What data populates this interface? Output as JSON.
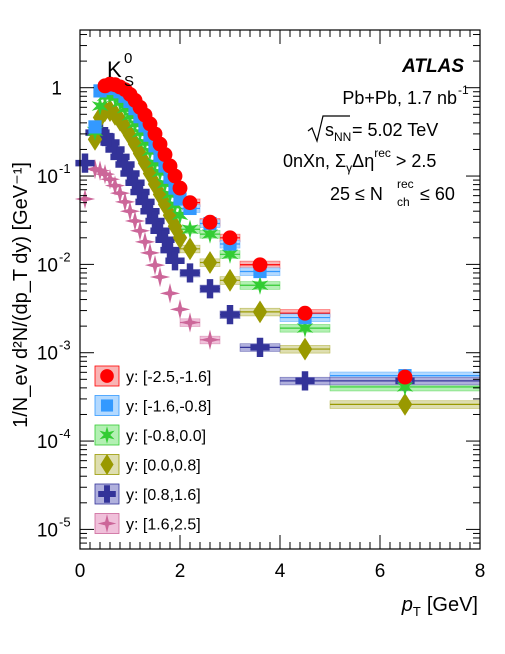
{
  "chart_data": {
    "type": "scatter",
    "xlabel": "p",
    "xlabel_sub": "T",
    "xlabel_unit": "[GeV]",
    "ylabel": "1/N_ev d²N/(dp_T dy) [GeV⁻¹]",
    "x_scale": "linear",
    "y_scale": "log",
    "xlim": [
      0,
      8
    ],
    "ylim": [
      6e-06,
      4.5
    ],
    "x_ticks": [
      0,
      2,
      4,
      6,
      8
    ],
    "x_tick_labels": [
      "0",
      "2",
      "4",
      "6",
      "8"
    ],
    "y_ticks": [
      1e-05,
      0.0001,
      0.001,
      0.01,
      0.1,
      1
    ],
    "y_tick_labels": [
      {
        "base": "10",
        "exp": "-5"
      },
      {
        "base": "10",
        "exp": "-4"
      },
      {
        "base": "10",
        "exp": "-3"
      },
      {
        "base": "10",
        "exp": "-2"
      },
      {
        "base": "10",
        "exp": "-1"
      },
      {
        "base": "1",
        "exp": ""
      }
    ],
    "grid": false,
    "legend_position": "bottom-left",
    "annotations": {
      "particle": "K",
      "particle_sup": "0",
      "particle_sub": "S",
      "experiment": "ATLAS",
      "system": "Pb+Pb, 1.7 nb",
      "system_sup": "-1",
      "energy_lhs": "s",
      "energy_lhs_sub": "NN",
      "energy_rhs": " = 5.02 TeV",
      "selection_a": "0nXn, Σ",
      "selection_a_sub": "γ",
      "selection_b": "Δη",
      "selection_b_sup": "rec",
      "selection_c": " > 2.5",
      "mult_a": "25 ≤ N",
      "mult_sup": "rec",
      "mult_sub": "ch",
      "mult_c": " ≤ 60"
    },
    "series": [
      {
        "name": "y: [-2.5,-1.6]",
        "marker": "circle",
        "color": "#ff0000",
        "band_fill": "#f9b4b4",
        "points": [
          {
            "x": 0.5,
            "y": 1.05
          },
          {
            "x": 0.6,
            "y": 1.1
          },
          {
            "x": 0.7,
            "y": 1.08
          },
          {
            "x": 0.8,
            "y": 1.02
          },
          {
            "x": 0.9,
            "y": 0.95
          },
          {
            "x": 1.0,
            "y": 0.84
          },
          {
            "x": 1.1,
            "y": 0.72
          },
          {
            "x": 1.2,
            "y": 0.6
          },
          {
            "x": 1.3,
            "y": 0.49
          },
          {
            "x": 1.4,
            "y": 0.39
          },
          {
            "x": 1.5,
            "y": 0.3
          },
          {
            "x": 1.6,
            "y": 0.23
          },
          {
            "x": 1.7,
            "y": 0.175
          },
          {
            "x": 1.8,
            "y": 0.13
          },
          {
            "x": 1.9,
            "y": 0.1
          },
          {
            "x": 2.0,
            "y": 0.073
          },
          {
            "x": 2.2,
            "y": 0.05
          },
          {
            "x": 2.6,
            "y": 0.03
          },
          {
            "x": 3.0,
            "y": 0.02
          },
          {
            "x": 3.6,
            "y": 0.0099
          },
          {
            "x": 4.5,
            "y": 0.0028
          },
          {
            "x": 6.5,
            "y": 0.00053
          }
        ]
      },
      {
        "name": "y: [-1.6,-0.8]",
        "marker": "square",
        "color": "#3399ff",
        "band_fill": "#b3d9ff",
        "points": [
          {
            "x": 0.3,
            "y": 0.36
          },
          {
            "x": 0.4,
            "y": 0.92
          },
          {
            "x": 0.5,
            "y": 0.98
          },
          {
            "x": 0.6,
            "y": 1.0
          },
          {
            "x": 0.7,
            "y": 0.98
          },
          {
            "x": 0.8,
            "y": 0.9
          },
          {
            "x": 0.9,
            "y": 0.8
          },
          {
            "x": 1.0,
            "y": 0.7
          },
          {
            "x": 1.1,
            "y": 0.58
          },
          {
            "x": 1.2,
            "y": 0.47
          },
          {
            "x": 1.3,
            "y": 0.37
          },
          {
            "x": 1.4,
            "y": 0.29
          },
          {
            "x": 1.5,
            "y": 0.22
          },
          {
            "x": 1.6,
            "y": 0.17
          },
          {
            "x": 1.7,
            "y": 0.13
          },
          {
            "x": 1.8,
            "y": 0.097
          },
          {
            "x": 1.9,
            "y": 0.073
          },
          {
            "x": 2.0,
            "y": 0.055
          },
          {
            "x": 2.2,
            "y": 0.043
          },
          {
            "x": 2.6,
            "y": 0.029
          },
          {
            "x": 3.0,
            "y": 0.017
          },
          {
            "x": 3.6,
            "y": 0.0083
          },
          {
            "x": 4.5,
            "y": 0.0025
          },
          {
            "x": 6.5,
            "y": 0.00055
          }
        ]
      },
      {
        "name": "y: [-0.8,0.0]",
        "marker": "star",
        "color": "#33cc33",
        "band_fill": "#b3f0b3",
        "points": [
          {
            "x": 0.3,
            "y": 0.32
          },
          {
            "x": 0.4,
            "y": 0.62
          },
          {
            "x": 0.5,
            "y": 0.8
          },
          {
            "x": 0.6,
            "y": 0.85
          },
          {
            "x": 0.7,
            "y": 0.78
          },
          {
            "x": 0.8,
            "y": 0.68
          },
          {
            "x": 0.9,
            "y": 0.58
          },
          {
            "x": 1.0,
            "y": 0.48
          },
          {
            "x": 1.1,
            "y": 0.39
          },
          {
            "x": 1.2,
            "y": 0.31
          },
          {
            "x": 1.3,
            "y": 0.24
          },
          {
            "x": 1.4,
            "y": 0.19
          },
          {
            "x": 1.5,
            "y": 0.14
          },
          {
            "x": 1.6,
            "y": 0.11
          },
          {
            "x": 1.7,
            "y": 0.082
          },
          {
            "x": 1.8,
            "y": 0.062
          },
          {
            "x": 1.9,
            "y": 0.047
          },
          {
            "x": 2.0,
            "y": 0.036
          },
          {
            "x": 2.2,
            "y": 0.025
          },
          {
            "x": 2.6,
            "y": 0.022
          },
          {
            "x": 3.0,
            "y": 0.013
          },
          {
            "x": 3.6,
            "y": 0.0058
          },
          {
            "x": 4.5,
            "y": 0.0019
          },
          {
            "x": 6.5,
            "y": 0.00041
          }
        ]
      },
      {
        "name": "y: [0.0,0.8]",
        "marker": "diamond",
        "color": "#999900",
        "band_fill": "#dedeb0",
        "points": [
          {
            "x": 0.3,
            "y": 0.26
          },
          {
            "x": 0.4,
            "y": 0.46
          },
          {
            "x": 0.5,
            "y": 0.55
          },
          {
            "x": 0.6,
            "y": 0.55
          },
          {
            "x": 0.7,
            "y": 0.5
          },
          {
            "x": 0.8,
            "y": 0.43
          },
          {
            "x": 0.9,
            "y": 0.36
          },
          {
            "x": 1.0,
            "y": 0.29
          },
          {
            "x": 1.1,
            "y": 0.23
          },
          {
            "x": 1.2,
            "y": 0.18
          },
          {
            "x": 1.3,
            "y": 0.14
          },
          {
            "x": 1.4,
            "y": 0.107
          },
          {
            "x": 1.5,
            "y": 0.081
          },
          {
            "x": 1.6,
            "y": 0.062
          },
          {
            "x": 1.7,
            "y": 0.048
          },
          {
            "x": 1.8,
            "y": 0.036
          },
          {
            "x": 1.9,
            "y": 0.027
          },
          {
            "x": 2.0,
            "y": 0.02
          },
          {
            "x": 2.2,
            "y": 0.015
          },
          {
            "x": 2.6,
            "y": 0.0105
          },
          {
            "x": 3.0,
            "y": 0.0066
          },
          {
            "x": 3.6,
            "y": 0.0029
          },
          {
            "x": 4.5,
            "y": 0.0011
          },
          {
            "x": 6.5,
            "y": 0.00026
          }
        ]
      },
      {
        "name": "y: [0.8,1.6]",
        "marker": "cross",
        "color": "#333399",
        "band_fill": "#b0b0dd",
        "points": [
          {
            "x": 0.1,
            "y": 0.14
          },
          {
            "x": 0.3,
            "y": 0.31
          },
          {
            "x": 0.4,
            "y": 0.31
          },
          {
            "x": 0.5,
            "y": 0.28
          },
          {
            "x": 0.6,
            "y": 0.24
          },
          {
            "x": 0.7,
            "y": 0.2
          },
          {
            "x": 0.8,
            "y": 0.165
          },
          {
            "x": 0.9,
            "y": 0.135
          },
          {
            "x": 1.0,
            "y": 0.107
          },
          {
            "x": 1.1,
            "y": 0.084
          },
          {
            "x": 1.2,
            "y": 0.066
          },
          {
            "x": 1.3,
            "y": 0.051
          },
          {
            "x": 1.4,
            "y": 0.04
          },
          {
            "x": 1.5,
            "y": 0.031
          },
          {
            "x": 1.6,
            "y": 0.024
          },
          {
            "x": 1.7,
            "y": 0.019
          },
          {
            "x": 1.8,
            "y": 0.0145
          },
          {
            "x": 1.9,
            "y": 0.011
          },
          {
            "x": 2.2,
            "y": 0.008
          },
          {
            "x": 2.6,
            "y": 0.0053
          },
          {
            "x": 3.0,
            "y": 0.0027
          },
          {
            "x": 3.6,
            "y": 0.00115
          },
          {
            "x": 4.5,
            "y": 0.00048
          },
          {
            "x": 6.5,
            "y": 0.00048
          }
        ]
      },
      {
        "name": "y: [1.6,2.5]",
        "marker": "star4",
        "color": "#cc6699",
        "band_fill": "#f0c0da",
        "points": [
          {
            "x": 0.1,
            "y": 0.055
          },
          {
            "x": 0.3,
            "y": 0.12
          },
          {
            "x": 0.4,
            "y": 0.115
          },
          {
            "x": 0.5,
            "y": 0.105
          },
          {
            "x": 0.6,
            "y": 0.092
          },
          {
            "x": 0.7,
            "y": 0.078
          },
          {
            "x": 0.8,
            "y": 0.064
          },
          {
            "x": 0.9,
            "y": 0.051
          },
          {
            "x": 1.0,
            "y": 0.04
          },
          {
            "x": 1.1,
            "y": 0.031
          },
          {
            "x": 1.2,
            "y": 0.024
          },
          {
            "x": 1.3,
            "y": 0.018
          },
          {
            "x": 1.4,
            "y": 0.0135
          },
          {
            "x": 1.5,
            "y": 0.0098
          },
          {
            "x": 1.6,
            "y": 0.0072
          },
          {
            "x": 1.8,
            "y": 0.0047
          },
          {
            "x": 2.0,
            "y": 0.0031
          },
          {
            "x": 2.2,
            "y": 0.0022
          },
          {
            "x": 2.6,
            "y": 0.0014
          }
        ]
      }
    ]
  }
}
